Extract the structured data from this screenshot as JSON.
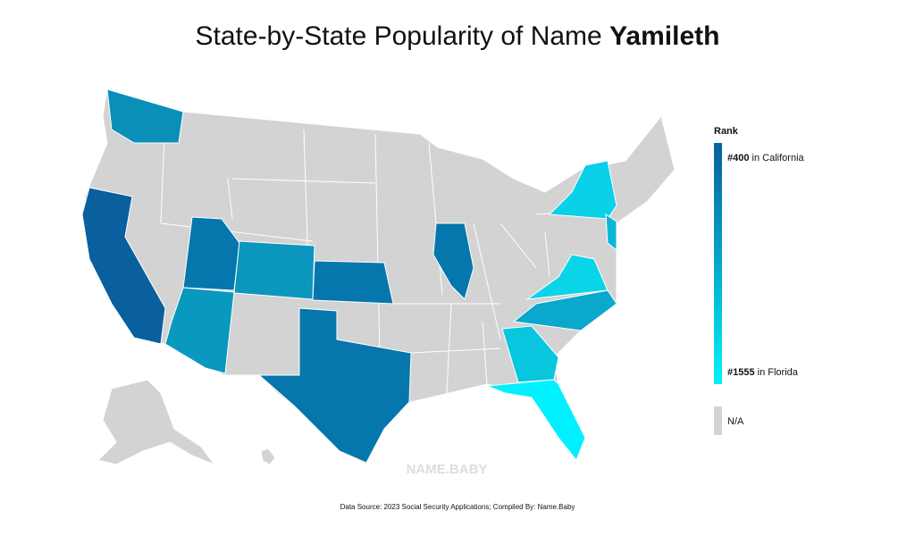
{
  "header": {
    "title": "State-by-State Popularity of Name",
    "name": "Yamileth"
  },
  "map": {
    "na_color": "#d3d3d3",
    "highlighted_colors": [
      "#0a8fb8",
      "#0a5f9e",
      "#0677ad",
      "#0a96bd",
      "#0999bf",
      "#0677ad",
      "#0677ad",
      "#0677ad",
      "#0ad0e8",
      "#0ab8d5",
      "#0ad4e8",
      "#0aa8cc",
      "#08c6dd",
      "#00f0ff"
    ]
  },
  "legend": {
    "title": "Rank",
    "top": {
      "label": "#400",
      "place": "in California",
      "color": "#0a5f9e"
    },
    "bottom": {
      "label": "#1555",
      "place": "in Florida",
      "color": "#00f0ff"
    },
    "na": "N/A"
  },
  "watermark": "NAME.BABY",
  "footer": "Data Source: 2023 Social Security Applications; Compiled By: Name.Baby"
}
